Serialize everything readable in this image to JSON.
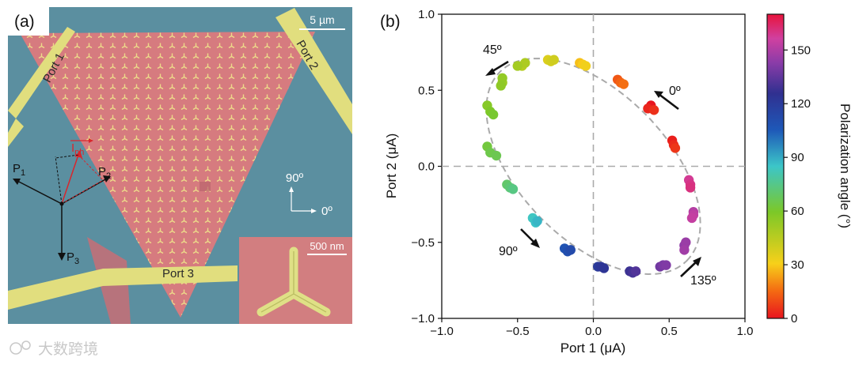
{
  "panel_a": {
    "label": "(a)",
    "scale_bar": "5 µm",
    "port1": "Port 1",
    "port2": "Port 2",
    "port3": "Port 3",
    "vec_p1": "P",
    "vec_p1_sub": "1",
    "vec_p2": "P",
    "vec_p2_sub": "2",
    "vec_p3": "P",
    "vec_p3_sub": "3",
    "iph": "I",
    "iph_sub": "ph",
    "angle_90": "90º",
    "angle_0": "0º",
    "inset_scale": "500 nm"
  },
  "panel_b": {
    "label": "(b)",
    "arrow_labels": {
      "a45": "45º",
      "a0": "0º",
      "a90": "90º",
      "a135": "135º"
    }
  },
  "watermark": "大数跨境",
  "colors": {
    "substrate": "#5f93a4",
    "triangle": "#d67b7f",
    "electrode": "#e1de7e",
    "fit_line": "#aaaaaa"
  },
  "chart_data": {
    "type": "scatter",
    "title": "",
    "xlabel": "Port 1 (μA)",
    "ylabel": "Port 2 (μA)",
    "xlim": [
      -1.0,
      1.0
    ],
    "ylim": [
      -1.0,
      1.0
    ],
    "xticks": [
      "−1.0",
      "−0.5",
      "0.0",
      "0.5",
      "1.0"
    ],
    "yticks": [
      "−1.0",
      "−0.5",
      "0.0",
      "0.5",
      "1.0"
    ],
    "reference_lines": {
      "x": 0.0,
      "y": 0.0,
      "style": "dashed"
    },
    "fit": {
      "shape": "ellipse",
      "style": "dashed"
    },
    "colorbar": {
      "label": "Polarization angle (°)",
      "min": 0,
      "max": 170,
      "ticks": [
        "0",
        "30",
        "60",
        "90",
        "120",
        "150"
      ],
      "colormap": "rainbow (red → orange → yellow → green → cyan → blue → purple → magenta → red)"
    },
    "points": [
      {
        "x": 0.38,
        "y": 0.4,
        "angle": 0
      },
      {
        "x": 0.36,
        "y": 0.38,
        "angle": 3
      },
      {
        "x": 0.4,
        "y": 0.37,
        "angle": 5
      },
      {
        "x": 0.52,
        "y": 0.17,
        "angle": 2
      },
      {
        "x": 0.53,
        "y": 0.14,
        "angle": 4
      },
      {
        "x": 0.54,
        "y": 0.12,
        "angle": 6
      },
      {
        "x": 0.16,
        "y": 0.57,
        "angle": 12
      },
      {
        "x": 0.18,
        "y": 0.55,
        "angle": 14
      },
      {
        "x": 0.2,
        "y": 0.54,
        "angle": 16
      },
      {
        "x": -0.09,
        "y": 0.68,
        "angle": 28
      },
      {
        "x": -0.07,
        "y": 0.67,
        "angle": 30
      },
      {
        "x": -0.05,
        "y": 0.66,
        "angle": 32
      },
      {
        "x": -0.3,
        "y": 0.7,
        "angle": 37
      },
      {
        "x": -0.28,
        "y": 0.69,
        "angle": 39
      },
      {
        "x": -0.26,
        "y": 0.7,
        "angle": 40
      },
      {
        "x": -0.47,
        "y": 0.66,
        "angle": 46
      },
      {
        "x": -0.45,
        "y": 0.68,
        "angle": 48
      },
      {
        "x": -0.5,
        "y": 0.66,
        "angle": 50
      },
      {
        "x": -0.6,
        "y": 0.55,
        "angle": 52
      },
      {
        "x": -0.6,
        "y": 0.58,
        "angle": 54
      },
      {
        "x": -0.61,
        "y": 0.53,
        "angle": 55
      },
      {
        "x": -0.7,
        "y": 0.4,
        "angle": 57
      },
      {
        "x": -0.68,
        "y": 0.36,
        "angle": 59
      },
      {
        "x": -0.66,
        "y": 0.34,
        "angle": 61
      },
      {
        "x": -0.7,
        "y": 0.13,
        "angle": 63
      },
      {
        "x": -0.68,
        "y": 0.09,
        "angle": 65
      },
      {
        "x": -0.64,
        "y": 0.07,
        "angle": 66
      },
      {
        "x": -0.57,
        "y": -0.12,
        "angle": 70
      },
      {
        "x": -0.55,
        "y": -0.14,
        "angle": 72
      },
      {
        "x": -0.53,
        "y": -0.15,
        "angle": 74
      },
      {
        "x": -0.4,
        "y": -0.34,
        "angle": 84
      },
      {
        "x": -0.38,
        "y": -0.37,
        "angle": 86
      },
      {
        "x": -0.37,
        "y": -0.36,
        "angle": 88
      },
      {
        "x": -0.19,
        "y": -0.54,
        "angle": 108
      },
      {
        "x": -0.17,
        "y": -0.56,
        "angle": 110
      },
      {
        "x": -0.15,
        "y": -0.55,
        "angle": 112
      },
      {
        "x": 0.03,
        "y": -0.66,
        "angle": 120
      },
      {
        "x": 0.05,
        "y": -0.66,
        "angle": 122
      },
      {
        "x": 0.07,
        "y": -0.67,
        "angle": 123
      },
      {
        "x": 0.24,
        "y": -0.69,
        "angle": 128
      },
      {
        "x": 0.26,
        "y": -0.7,
        "angle": 130
      },
      {
        "x": 0.28,
        "y": -0.69,
        "angle": 132
      },
      {
        "x": 0.44,
        "y": -0.66,
        "angle": 138
      },
      {
        "x": 0.46,
        "y": -0.65,
        "angle": 140
      },
      {
        "x": 0.48,
        "y": -0.65,
        "angle": 141
      },
      {
        "x": 0.6,
        "y": -0.52,
        "angle": 144
      },
      {
        "x": 0.61,
        "y": -0.5,
        "angle": 146
      },
      {
        "x": 0.6,
        "y": -0.55,
        "angle": 147
      },
      {
        "x": 0.66,
        "y": -0.3,
        "angle": 151
      },
      {
        "x": 0.66,
        "y": -0.32,
        "angle": 153
      },
      {
        "x": 0.65,
        "y": -0.34,
        "angle": 154
      },
      {
        "x": 0.63,
        "y": -0.09,
        "angle": 158
      },
      {
        "x": 0.64,
        "y": -0.12,
        "angle": 160
      },
      {
        "x": 0.64,
        "y": -0.14,
        "angle": 161
      }
    ]
  }
}
